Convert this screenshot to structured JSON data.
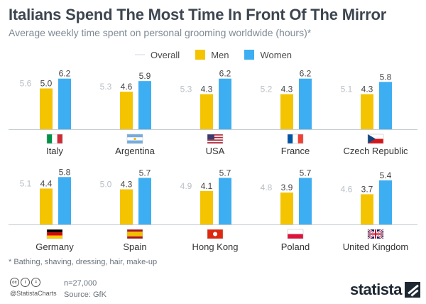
{
  "title": "Italians Spend The Most Time In Front Of The Mirror",
  "subtitle": "Average weekly time spent on personal grooming worldwide (hours)*",
  "footnote": "* Bathing, shaving, dressing, hair, make-up",
  "n_label": "n=27,000",
  "source": "Source: GfK",
  "handle": "@StatistaCharts",
  "cc_icons": [
    "cc",
    "i",
    "="
  ],
  "logo_text": "statista",
  "colors": {
    "men": "#f5c400",
    "women": "#3eaef3",
    "overall": "#b9c0c6",
    "value_text": "#444444",
    "baseline": "#c4cbd1"
  },
  "chart_data": {
    "type": "bar",
    "title": "Italians Spend The Most Time In Front Of The Mirror",
    "subtitle": "Average weekly time spent on personal grooming worldwide (hours)*",
    "legend_placement": "top-center",
    "grid": false,
    "ylim": [
      0,
      7
    ],
    "legend": [
      "Overall",
      "Men",
      "Women"
    ],
    "categories": [
      "Italy",
      "Argentina",
      "USA",
      "France",
      "Czech Republic",
      "Germany",
      "Spain",
      "Hong Kong",
      "Poland",
      "United Kingdom"
    ],
    "flags": [
      "italy",
      "argentina",
      "usa",
      "france",
      "czech-republic",
      "germany",
      "spain",
      "hong-kong",
      "poland",
      "united-kingdom"
    ],
    "series": [
      {
        "name": "Overall",
        "values": [
          5.6,
          5.3,
          5.3,
          5.2,
          5.1,
          5.1,
          5.0,
          4.9,
          4.8,
          4.6
        ]
      },
      {
        "name": "Men",
        "values": [
          5.0,
          4.6,
          4.3,
          4.3,
          4.3,
          4.4,
          4.3,
          4.1,
          3.9,
          3.7
        ]
      },
      {
        "name": "Women",
        "values": [
          6.2,
          5.9,
          6.2,
          6.2,
          5.8,
          5.8,
          5.7,
          5.7,
          5.7,
          5.4
        ]
      }
    ]
  }
}
